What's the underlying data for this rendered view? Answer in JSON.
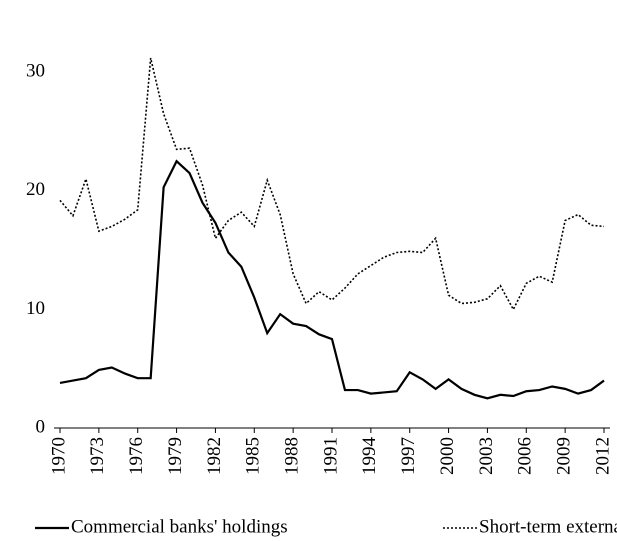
{
  "chart_data": {
    "type": "line",
    "x": [
      1970,
      1971,
      1972,
      1973,
      1974,
      1975,
      1976,
      1977,
      1978,
      1979,
      1980,
      1981,
      1982,
      1983,
      1984,
      1985,
      1986,
      1987,
      1988,
      1989,
      1990,
      1991,
      1992,
      1993,
      1994,
      1995,
      1996,
      1997,
      1998,
      1999,
      2000,
      2001,
      2002,
      2003,
      2004,
      2005,
      2006,
      2007,
      2008,
      2009,
      2010,
      2011,
      2012
    ],
    "series": [
      {
        "name": "Commercial banks' holdings",
        "color": "#000000",
        "line_style": "solid",
        "values": [
          3.8,
          4.0,
          4.2,
          4.9,
          5.1,
          4.6,
          4.2,
          4.2,
          20.3,
          22.5,
          21.5,
          19.0,
          17.3,
          14.8,
          13.6,
          11.0,
          8.0,
          9.6,
          8.8,
          8.6,
          7.9,
          7.5,
          3.2,
          3.2,
          2.9,
          3.0,
          3.1,
          4.7,
          4.1,
          3.3,
          4.1,
          3.3,
          2.8,
          2.5,
          2.8,
          2.7,
          3.1,
          3.2,
          3.5,
          3.3,
          2.9,
          3.2,
          4.0
        ]
      },
      {
        "name": "Short-term external debt",
        "color": "#000000",
        "line_style": "dotted",
        "values": [
          19.2,
          17.9,
          21.0,
          16.6,
          17.0,
          17.6,
          18.4,
          31.2,
          26.5,
          23.5,
          23.6,
          20.5,
          16.0,
          17.5,
          18.2,
          17.0,
          20.9,
          18.0,
          13.0,
          10.5,
          11.5,
          10.8,
          11.8,
          13.0,
          13.7,
          14.4,
          14.8,
          14.9,
          14.8,
          16.0,
          11.2,
          10.5,
          10.6,
          10.9,
          12.0,
          10.0,
          12.2,
          12.8,
          12.3,
          17.5,
          18.0,
          17.1,
          17.0
        ]
      }
    ],
    "xlim": [
      1970,
      2012
    ],
    "xticks": [
      1970,
      1973,
      1976,
      1979,
      1982,
      1985,
      1988,
      1991,
      1994,
      1997,
      2000,
      2003,
      2006,
      2009,
      2012
    ],
    "ylim": [
      0,
      35
    ],
    "yticks": [
      0,
      10,
      20,
      30
    ],
    "grid": false,
    "legend": "bottom"
  }
}
